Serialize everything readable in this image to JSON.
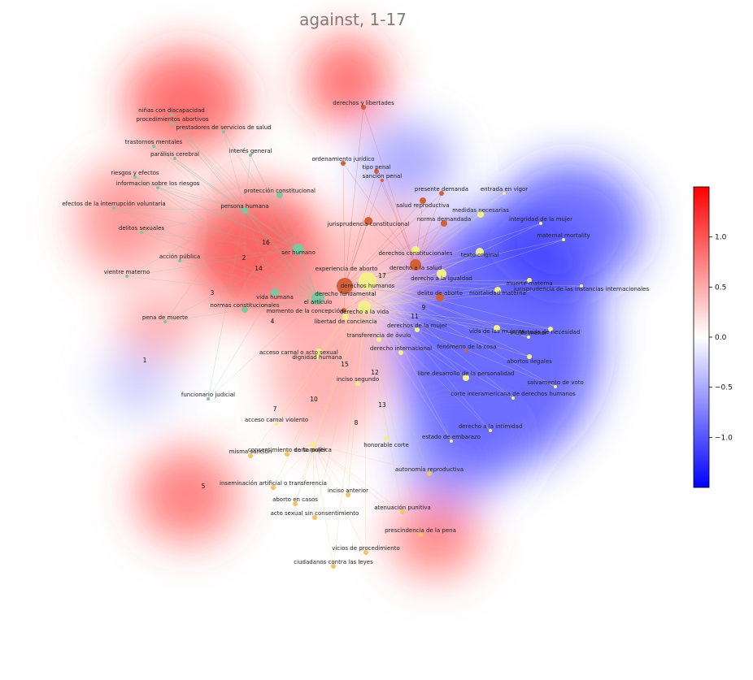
{
  "chart_data": {
    "type": "scatter",
    "title": "against, 1-17",
    "colorbar": {
      "ticks": [
        1.0,
        0.5,
        0.0,
        -0.5,
        -1.0
      ],
      "tick_labels": [
        "1.0",
        "0.5",
        "0.0",
        "−0.5",
        "−1.0"
      ],
      "range": [
        -1.5,
        1.5
      ],
      "colormap": [
        "#0000ff",
        "#ffffff",
        "#ff0000"
      ]
    },
    "colors": {
      "red": "#d4603a",
      "green": "#7dc6a0",
      "yellow": "#f3f08c",
      "orange": "#f2c466"
    },
    "clusters": [
      {
        "label": "1",
        "value": 0.0
      },
      {
        "label": "2",
        "value": 0.9
      },
      {
        "label": "3",
        "value": 0.7
      },
      {
        "label": "4",
        "value": 0.5
      },
      {
        "label": "5",
        "value": 0.8
      },
      {
        "label": "7",
        "value": 0.5
      },
      {
        "label": "8",
        "value": 0.4
      },
      {
        "label": "9",
        "value": -0.3
      },
      {
        "label": "10",
        "value": 0.4
      },
      {
        "label": "11",
        "value": -0.2
      },
      {
        "label": "12",
        "value": 0.1
      },
      {
        "label": "13",
        "value": -0.3
      },
      {
        "label": "14",
        "value": 0.9
      },
      {
        "label": "15",
        "value": 0.3
      },
      {
        "label": "16",
        "value": 0.9
      },
      {
        "label": "17",
        "value": 0.3
      }
    ],
    "nodes": [
      {
        "label": "derechos y libertades",
        "group": "red"
      },
      {
        "label": "ordenamiento jurídico",
        "group": "red"
      },
      {
        "label": "tipo penal",
        "group": "red"
      },
      {
        "label": "sanción penal",
        "group": "red"
      },
      {
        "label": "presente demanda",
        "group": "red"
      },
      {
        "label": "salud reproductiva",
        "group": "red"
      },
      {
        "label": "jurisprudencia constitucional",
        "group": "red"
      },
      {
        "label": "norma demandada",
        "group": "red"
      },
      {
        "label": "derecho a la salud",
        "group": "red"
      },
      {
        "label": "derechos humanos",
        "group": "red"
      },
      {
        "label": "delito de aborto",
        "group": "red"
      },
      {
        "label": "momento de la concepción",
        "group": "red"
      },
      {
        "label": "fenómeno de la cosa",
        "group": "red"
      },
      {
        "label": "niñas con discapacidad",
        "group": "green"
      },
      {
        "label": "procedimientos abortivos",
        "group": "green"
      },
      {
        "label": "prestadores de servicios de salud",
        "group": "green"
      },
      {
        "label": "trastornos mentales",
        "group": "green"
      },
      {
        "label": "parálisis cerebral",
        "group": "green"
      },
      {
        "label": "interés general",
        "group": "green"
      },
      {
        "label": "riesgos y efectos",
        "group": "green"
      },
      {
        "label": "informacion sobre los riesgos",
        "group": "green"
      },
      {
        "label": "protección constitucional",
        "group": "green"
      },
      {
        "label": "efectos de la interrupción voluntaria",
        "group": "green"
      },
      {
        "label": "persona humana",
        "group": "green"
      },
      {
        "label": "delitos sexuales",
        "group": "green"
      },
      {
        "label": "ser humano",
        "group": "green"
      },
      {
        "label": "acción pública",
        "group": "green"
      },
      {
        "label": "vientre materno",
        "group": "green"
      },
      {
        "label": "vida humana",
        "group": "green"
      },
      {
        "label": "derecho fundamental",
        "group": "green"
      },
      {
        "label": "el artículo",
        "group": "green"
      },
      {
        "label": "normas constitucionales",
        "group": "green"
      },
      {
        "label": "pena de muerte",
        "group": "green"
      },
      {
        "label": "funcionario judicial",
        "group": "green"
      },
      {
        "label": "entrada en vigor",
        "group": "yellow"
      },
      {
        "label": "medidas necesarias",
        "group": "yellow"
      },
      {
        "label": "integridad de la mujer",
        "group": "yellow"
      },
      {
        "label": "maternal mortality",
        "group": "yellow"
      },
      {
        "label": "derechos constitucionales",
        "group": "yellow"
      },
      {
        "label": "texto original",
        "group": "yellow"
      },
      {
        "label": "experiencia de aborto",
        "group": "yellow"
      },
      {
        "label": "derecho a la igualdad",
        "group": "yellow"
      },
      {
        "label": "muerte materna",
        "group": "yellow"
      },
      {
        "label": "jurisprudencia de las instancias internacionales",
        "group": "yellow"
      },
      {
        "label": "mortalidad materna",
        "group": "yellow"
      },
      {
        "label": "derecho a la vida",
        "group": "yellow"
      },
      {
        "label": "libertad de conciencia",
        "group": "yellow"
      },
      {
        "label": "derechos de la mujer",
        "group": "yellow"
      },
      {
        "label": "vida de las mujeres",
        "group": "yellow"
      },
      {
        "label": "estado de necesidad",
        "group": "yellow"
      },
      {
        "label": "mujer menor",
        "group": "yellow"
      },
      {
        "label": "transferencia de óvulo",
        "group": "yellow"
      },
      {
        "label": "acceso carnal o acto sexual",
        "group": "yellow"
      },
      {
        "label": "dignidad humana",
        "group": "yellow"
      },
      {
        "label": "derecho internacional",
        "group": "yellow"
      },
      {
        "label": "abortos ilegales",
        "group": "yellow"
      },
      {
        "label": "libre desarrollo de la personalidad",
        "group": "yellow"
      },
      {
        "label": "inciso segundo",
        "group": "yellow"
      },
      {
        "label": "salvamento de voto",
        "group": "yellow"
      },
      {
        "label": "corte interamericana de derechos humanos",
        "group": "yellow"
      },
      {
        "label": "acceso carnal violento",
        "group": "yellow"
      },
      {
        "label": "derecho a la intimidad",
        "group": "yellow"
      },
      {
        "label": "honorable corte",
        "group": "yellow"
      },
      {
        "label": "estado de embarazo",
        "group": "yellow"
      },
      {
        "label": "carta política",
        "group": "yellow"
      },
      {
        "label": "misma sanción",
        "group": "orange"
      },
      {
        "label": "consentimiento de la mujer",
        "group": "orange"
      },
      {
        "label": "autonomía reproductiva",
        "group": "orange"
      },
      {
        "label": "inseminación artificial o transferencia",
        "group": "orange"
      },
      {
        "label": "inciso anterior",
        "group": "orange"
      },
      {
        "label": "aborto en casos",
        "group": "orange"
      },
      {
        "label": "atenuación punitiva",
        "group": "orange"
      },
      {
        "label": "acto sexual sin consentimiento",
        "group": "orange"
      },
      {
        "label": "prescindencia de la pena",
        "group": "orange"
      },
      {
        "label": "vicios de procedimiento",
        "group": "orange"
      },
      {
        "label": "ciudadanos contra las leyes",
        "group": "orange"
      }
    ]
  }
}
